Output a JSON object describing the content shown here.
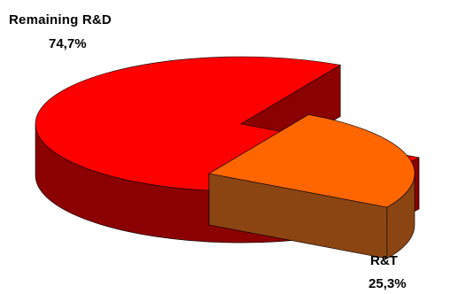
{
  "chart_data": {
    "type": "pie",
    "style": "3d-exploded",
    "slices": [
      {
        "name": "Remaining R&D",
        "label": "Remaining R&D",
        "percent_label": "74,7%",
        "value": 74.7,
        "color": "#ff0000",
        "side_color": "#8b0000",
        "exploded": false
      },
      {
        "name": "R&T",
        "label": "R&T",
        "percent_label": "25,3%",
        "value": 25.3,
        "color": "#ff6600",
        "side_color": "#8b4513",
        "exploded": true
      }
    ],
    "legend": "none"
  }
}
